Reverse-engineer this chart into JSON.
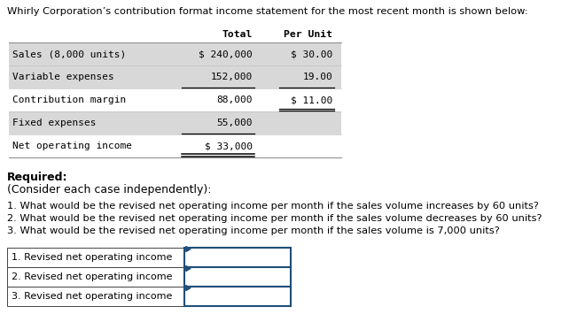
{
  "title": "Whirly Corporation’s contribution format income statement for the most recent month is shown below:",
  "table_header_total": "Total",
  "table_header_per_unit": "Per Unit",
  "rows": [
    {
      "label": "Sales (8,000 units)",
      "total": "$ 240,000",
      "per_unit": "$ 30.00",
      "shaded": true
    },
    {
      "label": "Variable expenses",
      "total": "152,000",
      "per_unit": "19.00",
      "shaded": true
    },
    {
      "label": "Contribution margin",
      "total": "88,000",
      "per_unit": "$ 11.00",
      "shaded": false
    },
    {
      "label": "Fixed expenses",
      "total": "55,000",
      "per_unit": "",
      "shaded": true
    },
    {
      "label": "Net operating income",
      "total": "$ 33,000",
      "per_unit": "",
      "shaded": false
    }
  ],
  "required_label": "Required:",
  "consider_label": "(Consider each case independently):",
  "questions": [
    "1. What would be the revised net operating income per month if the sales volume increases by 60 units?",
    "2. What would be the revised net operating income per month if the sales volume decreases by 60 units?",
    "3. What would be the revised net operating income per month if the sales volume is 7,000 units?"
  ],
  "answer_rows": [
    "1. Revised net operating income",
    "2. Revised net operating income",
    "3. Revised net operating income"
  ],
  "bg_color": "#ffffff",
  "shaded_color": "#d8d8d8",
  "answer_box_border": "#1f4e79",
  "font_family": "monospace",
  "sans_family": "DejaVu Sans"
}
